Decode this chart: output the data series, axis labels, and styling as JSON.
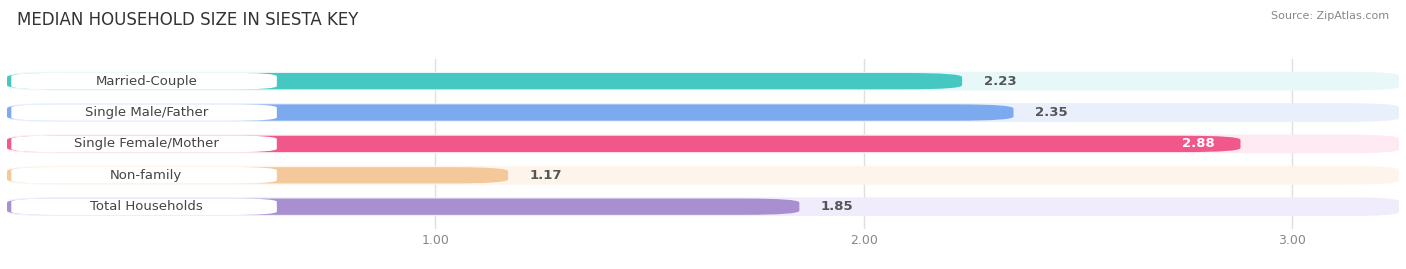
{
  "title": "MEDIAN HOUSEHOLD SIZE IN SIESTA KEY",
  "source": "Source: ZipAtlas.com",
  "categories": [
    "Married-Couple",
    "Single Male/Father",
    "Single Female/Mother",
    "Non-family",
    "Total Households"
  ],
  "values": [
    2.23,
    2.35,
    2.88,
    1.17,
    1.85
  ],
  "bar_colors": [
    "#45c8c1",
    "#7daaee",
    "#f0588a",
    "#f5c89a",
    "#a890d0"
  ],
  "bar_bg_colors": [
    "#e8f8f8",
    "#eaf0fb",
    "#fdeaf2",
    "#fdf5ec",
    "#f0ecfb"
  ],
  "label_bg_color": "#ffffff",
  "xlim_min": 0.0,
  "xlim_max": 3.25,
  "xticks": [
    1.0,
    2.0,
    3.0
  ],
  "xtick_labels": [
    "1.00",
    "2.00",
    "3.00"
  ],
  "value_fontsize": 9.5,
  "label_fontsize": 9.5,
  "title_fontsize": 12,
  "background_color": "#ffffff",
  "label_text_color": "#444444",
  "grid_color": "#e0e0e0"
}
